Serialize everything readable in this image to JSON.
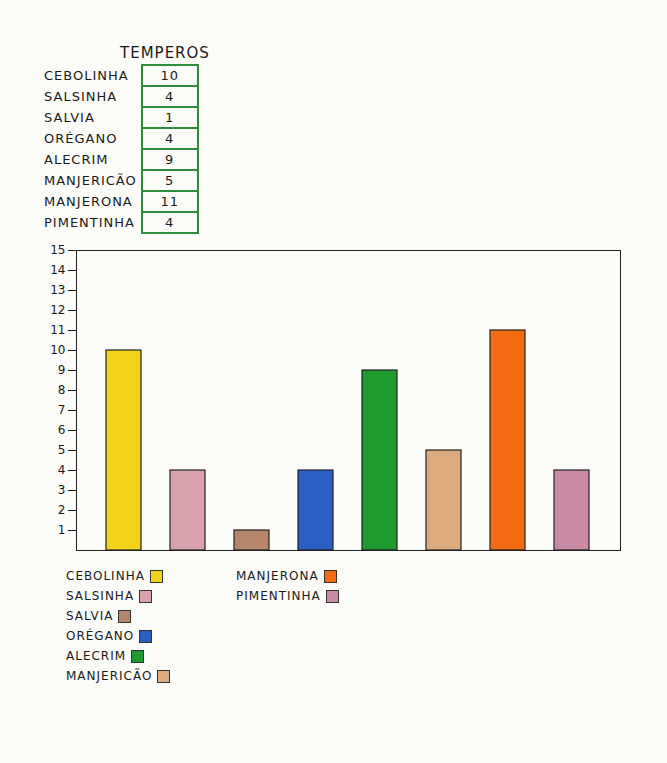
{
  "chart_data": {
    "type": "bar",
    "title": "TEMPEROS",
    "categories": [
      "CEBOLINHA",
      "SALSINHA",
      "SALVIA",
      "ORÉGANO",
      "ALECRIM",
      "MANJERICÃO",
      "MANJERONA",
      "PIMENTINHA"
    ],
    "values": [
      10,
      4,
      1,
      4,
      9,
      5,
      11,
      4
    ],
    "colors": [
      "#f2d21b",
      "#d9a3ad",
      "#b5866a",
      "#2c5fc6",
      "#1f9a2e",
      "#dcab80",
      "#f26a12",
      "#c98aa6"
    ],
    "ylim": [
      0,
      15
    ],
    "yticks": [
      1,
      2,
      3,
      4,
      5,
      6,
      7,
      8,
      9,
      10,
      11,
      12,
      13,
      14,
      15
    ],
    "grid": false,
    "legend": "bottom",
    "tick_labels": "y"
  }
}
